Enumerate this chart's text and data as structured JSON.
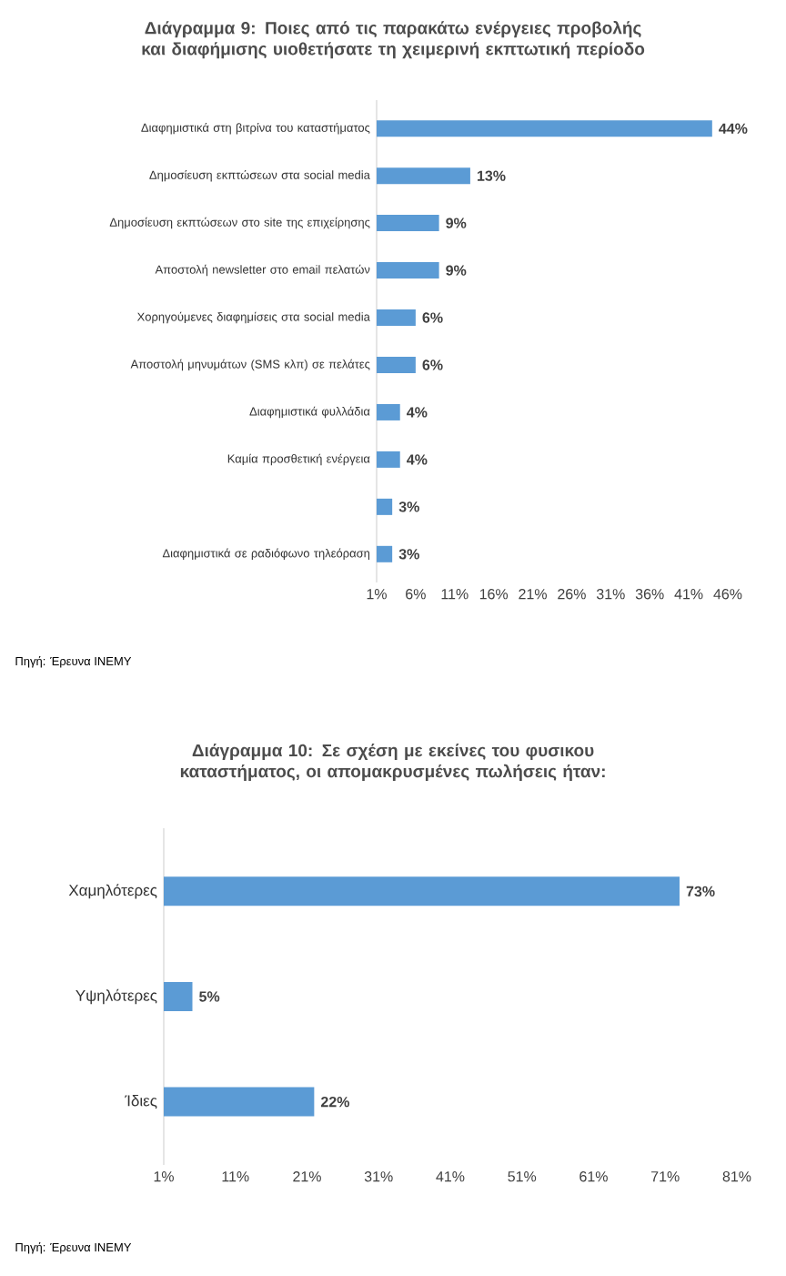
{
  "chart_data": [
    {
      "type": "bar",
      "orientation": "horizontal",
      "title": "Διάγραμμα 9: Ποιες από τις παρακάτω ενέργειες προβολής και διαφήμισης υιοθετήσατε τη χειμερινή εκπτωτική περίοδο",
      "categories": [
        "Διαφημιστικά στη βιτρίνα του καταστήματος",
        "Δημοσίευση εκπτώσεων στα social media",
        "Δημοσίευση εκπτώσεων στο site της επιχείρησης",
        "Αποστολή newsletter στο email πελατών",
        "Χορηγούμενες διαφημίσεις στα social media",
        "Αποστολή μηνυμάτων (SMS κλπ) σε πελάτες",
        "Διαφημιστικά φυλλάδια",
        "Καμία προσθετική ενέργεια",
        null,
        "Διαφημιστικά σε ραδιόφωνο τηλεόραση"
      ],
      "values": [
        44,
        13,
        9,
        9,
        6,
        6,
        4,
        4,
        3,
        3
      ],
      "value_labels": [
        "44%",
        "13%",
        "9%",
        "9%",
        "6%",
        "6%",
        "4%",
        "4%",
        "3%",
        "3%"
      ],
      "color": "#5b9bd5",
      "xlim": [
        1,
        46
      ],
      "xticks": [
        {
          "value": 1,
          "label": "1%"
        },
        {
          "value": 6,
          "label": "6%"
        },
        {
          "value": 11,
          "label": "11%"
        },
        {
          "value": 16,
          "label": "16%"
        },
        {
          "value": 21,
          "label": "21%"
        },
        {
          "value": 26,
          "label": "26%"
        },
        {
          "value": 31,
          "label": "31%"
        },
        {
          "value": 36,
          "label": "36%"
        },
        {
          "value": 41,
          "label": "41%"
        },
        {
          "value": 46,
          "label": "46%"
        }
      ],
      "annotations": [
        "Πηγή: Έρευνα ΙΝΕΜΥ"
      ]
    },
    {
      "type": "bar",
      "orientation": "horizontal",
      "title": "Διάγραμμα 10: Σε σχέση με εκείνες του φυσικου καταστήματος, οι απομακρυσμένες πωλήσεις ήταν:",
      "categories": [
        "Χαμηλότερες",
        "Υψηλότερες",
        "Ίδιες"
      ],
      "values": [
        73,
        5,
        22
      ],
      "value_labels": [
        "73%",
        "5%",
        "22%"
      ],
      "color": "#5b9bd5",
      "xlim": [
        1,
        81
      ],
      "xticks": [
        {
          "value": 1,
          "label": "1%"
        },
        {
          "value": 11,
          "label": "11%"
        },
        {
          "value": 21,
          "label": "21%"
        },
        {
          "value": 31,
          "label": "31%"
        },
        {
          "value": 41,
          "label": "41%"
        },
        {
          "value": 51,
          "label": "51%"
        },
        {
          "value": 61,
          "label": "61%"
        },
        {
          "value": 71,
          "label": "71%"
        },
        {
          "value": 81,
          "label": "81%"
        }
      ],
      "annotations": [
        "Πηγή: Έρευνα ΙΝΕΜΥ"
      ]
    }
  ]
}
